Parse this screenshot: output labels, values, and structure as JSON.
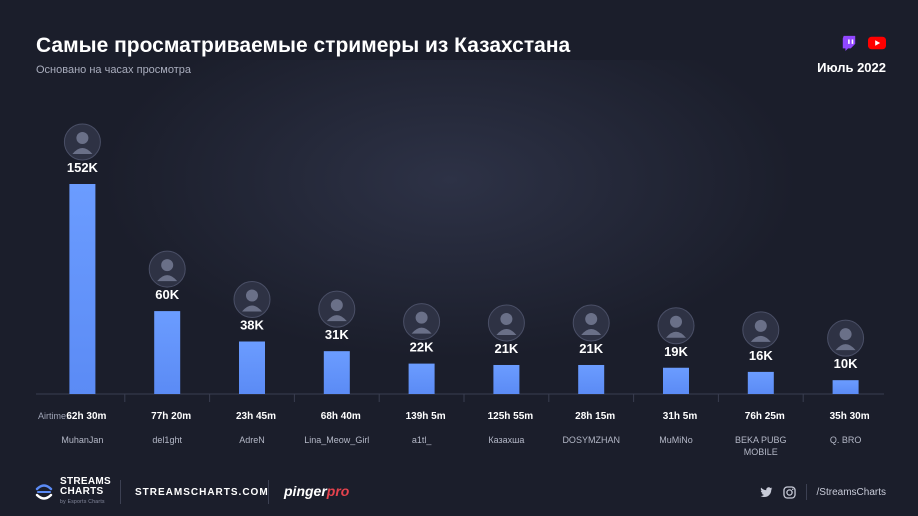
{
  "header": {
    "title": "Самые просматриваемые стримеры из Казахстана",
    "subtitle": "Основано на часах просмотра",
    "date": "Июль 2022",
    "platform_icons": [
      "twitch-icon",
      "youtube-icon"
    ]
  },
  "chart_data": {
    "type": "bar",
    "categories": [
      "MuhanJan",
      "del1ght",
      "AdreN",
      "Lina_Meow_Girl",
      "a1tl_",
      "Казахша",
      "DOSYMZHAN",
      "MuMiNo",
      "BEKA PUBG MOBILE",
      "Q. BRO"
    ],
    "values": [
      152000,
      60000,
      38000,
      31000,
      22000,
      21000,
      21000,
      19000,
      16000,
      10000
    ],
    "value_labels": [
      "152K",
      "60K",
      "38K",
      "31K",
      "22K",
      "21K",
      "21K",
      "19K",
      "16K",
      "10K"
    ],
    "airtime_label": "Airtime:",
    "airtime": [
      "62h 30m",
      "77h 20m",
      "23h 45m",
      "68h 40m",
      "139h 5m",
      "125h 55m",
      "28h 15m",
      "31h 5m",
      "76h 25m",
      "35h 30m"
    ],
    "ylim": [
      0,
      152000
    ],
    "bar_color": "#5b8bf5",
    "bar_color_top": "#6b9cff",
    "grid": false
  },
  "footer": {
    "logo_line1": "STREAMS",
    "logo_line2": "CHARTS",
    "logo_sub": "by Esports Charts",
    "site": "STREAMSCHARTS.COM",
    "partner_main": "pinger",
    "partner_accent": "pro",
    "handle": "/StreamsCharts",
    "social_icons": [
      "twitter-icon",
      "instagram-icon"
    ]
  }
}
